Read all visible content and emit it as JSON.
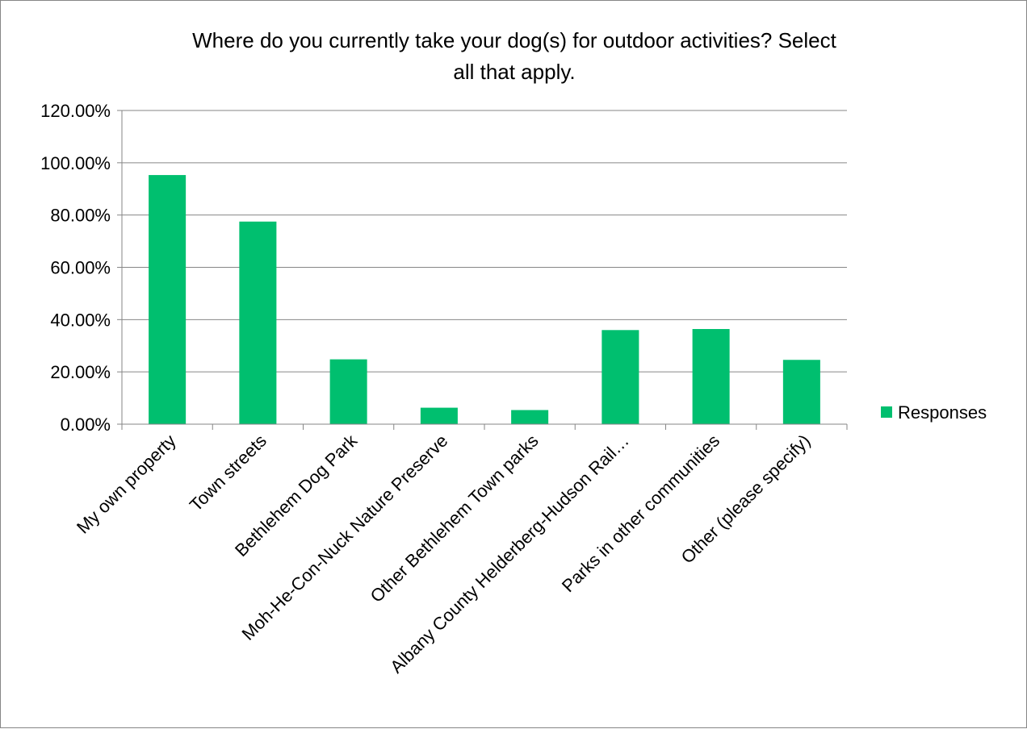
{
  "chart_data": {
    "type": "bar",
    "title": "Where do you currently take your dog(s) for outdoor activities? Select all that apply.",
    "title_lines": [
      "Where do you currently take your dog(s) for outdoor activities? Select",
      "all that apply."
    ],
    "categories": [
      "My own property",
      "Town streets",
      "Bethlehem Dog Park",
      "Moh-He-Con-Nuck Nature Preserve",
      "Other Bethlehem Town parks",
      "Albany County Helderberg-Hudson Rail…",
      "Parks in other communities",
      "Other (please specify)"
    ],
    "series": [
      {
        "name": "Responses",
        "values": [
          95.3,
          77.5,
          24.8,
          6.3,
          5.4,
          36.0,
          36.4,
          24.6
        ]
      }
    ],
    "ylim": [
      0,
      120
    ],
    "yticks": [
      "0.00%",
      "20.00%",
      "40.00%",
      "60.00%",
      "80.00%",
      "100.00%",
      "120.00%"
    ],
    "ytick_values": [
      0,
      20,
      40,
      60,
      80,
      100,
      120
    ],
    "xlabel": "",
    "ylabel": "",
    "grid": true,
    "legend": "right",
    "colors": {
      "bar": "#00BF6F",
      "grid": "#868686",
      "axis": "#868686"
    }
  }
}
